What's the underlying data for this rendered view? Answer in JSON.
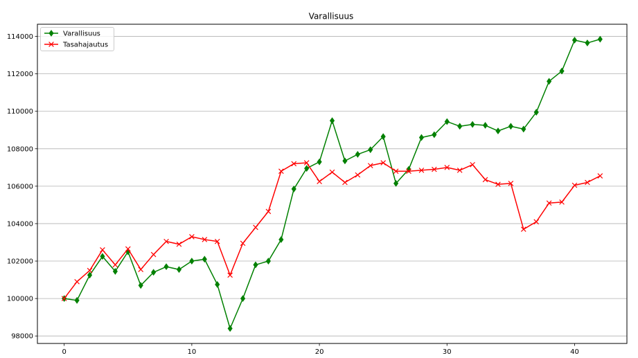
{
  "chart_data": {
    "type": "line",
    "title": "Varallisuus",
    "xlabel": "",
    "ylabel": "",
    "xlim": [
      -2.1,
      44.1
    ],
    "ylim": [
      97600,
      114650
    ],
    "xticks": [
      0,
      10,
      20,
      30,
      40
    ],
    "yticks": [
      98000,
      100000,
      102000,
      104000,
      106000,
      108000,
      110000,
      112000,
      114000
    ],
    "grid": "horizontal",
    "legend_position": "top-left",
    "x": [
      0,
      1,
      2,
      3,
      4,
      5,
      6,
      7,
      8,
      9,
      10,
      11,
      12,
      13,
      14,
      15,
      16,
      17,
      18,
      19,
      20,
      21,
      22,
      23,
      24,
      25,
      26,
      27,
      28,
      29,
      30,
      31,
      32,
      33,
      34,
      35,
      36,
      37,
      38,
      39,
      40,
      41,
      42
    ],
    "series": [
      {
        "name": "Varallisuus",
        "color": "#008000",
        "marker": "diamond",
        "values": [
          100000,
          99900,
          101250,
          102250,
          101450,
          102500,
          100700,
          101400,
          101700,
          101550,
          102000,
          102100,
          100750,
          98400,
          100000,
          101800,
          102000,
          103150,
          105850,
          106950,
          107300,
          109500,
          107350,
          107700,
          107950,
          108650,
          106150,
          106900,
          108600,
          108750,
          109450,
          109200,
          109300,
          109250,
          108950,
          109200,
          109050,
          109950,
          111600,
          112150,
          113800,
          113650,
          113850
        ]
      },
      {
        "name": "Tasahajautus",
        "color": "#ff0000",
        "marker": "x",
        "values": [
          100000,
          100900,
          101500,
          102600,
          101800,
          102650,
          101550,
          102350,
          103050,
          102900,
          103300,
          103150,
          103050,
          101250,
          102950,
          103800,
          104650,
          106800,
          107200,
          107250,
          106250,
          106750,
          106200,
          106600,
          107100,
          107250,
          106800,
          106800,
          106850,
          106900,
          107000,
          106850,
          107150,
          106350,
          106100,
          106150,
          103700,
          104100,
          105100,
          105150,
          106050,
          106200,
          106550
        ]
      }
    ]
  }
}
